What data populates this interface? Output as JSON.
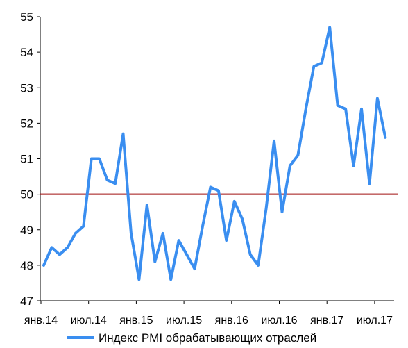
{
  "chart_data": {
    "type": "line",
    "y_ticks": [
      47,
      48,
      49,
      50,
      51,
      52,
      53,
      54,
      55
    ],
    "ylim": [
      47,
      55
    ],
    "x_tick_labels": [
      "янв.14",
      "июл.14",
      "янв.15",
      "июл.15",
      "янв.16",
      "июл.16",
      "янв.17",
      "июл.17"
    ],
    "x": [
      "2014-01",
      "2014-02",
      "2014-03",
      "2014-04",
      "2014-05",
      "2014-06",
      "2014-07",
      "2014-08",
      "2014-09",
      "2014-10",
      "2014-11",
      "2014-12",
      "2015-01",
      "2015-02",
      "2015-03",
      "2015-04",
      "2015-05",
      "2015-06",
      "2015-07",
      "2015-08",
      "2015-09",
      "2015-10",
      "2015-11",
      "2015-12",
      "2016-01",
      "2016-02",
      "2016-03",
      "2016-04",
      "2016-05",
      "2016-06",
      "2016-07",
      "2016-08",
      "2016-09",
      "2016-10",
      "2016-11",
      "2016-12",
      "2017-01",
      "2017-02",
      "2017-03",
      "2017-04",
      "2017-05",
      "2017-06",
      "2017-07",
      "2017-08"
    ],
    "series": [
      {
        "name": "Индекс PMI обрабатывающих отраслей",
        "color": "#3a8ef0",
        "values": [
          48.0,
          48.5,
          48.3,
          48.5,
          48.9,
          49.1,
          51.0,
          51.0,
          50.4,
          50.3,
          51.7,
          48.9,
          47.6,
          49.7,
          48.1,
          48.9,
          47.6,
          48.7,
          48.3,
          47.9,
          49.1,
          50.2,
          50.1,
          48.7,
          49.8,
          49.3,
          48.3,
          48.0,
          49.6,
          51.5,
          49.5,
          50.8,
          51.1,
          52.4,
          53.6,
          53.7,
          54.7,
          52.5,
          52.4,
          50.8,
          52.4,
          50.3,
          52.7,
          51.6
        ]
      }
    ],
    "reference_line": {
      "value": 50,
      "color": "#a01010"
    },
    "legend_position": "bottom",
    "grid": false
  }
}
